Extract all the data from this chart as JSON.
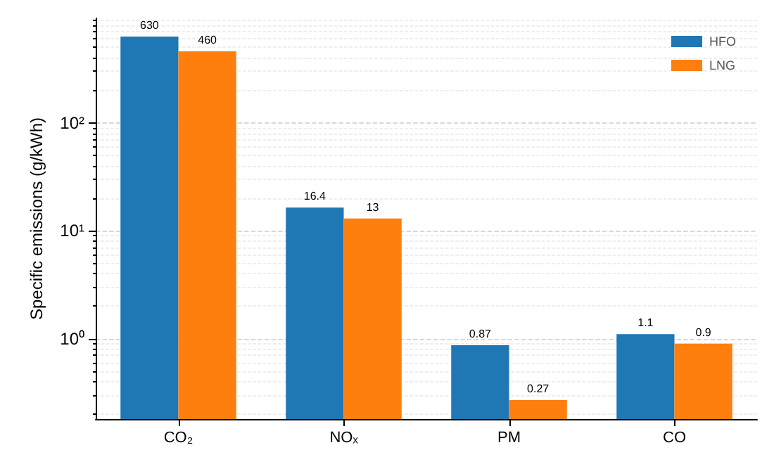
{
  "chart_data": {
    "type": "bar",
    "categories": [
      "CO₂",
      "NOₓ",
      "PM",
      "CO"
    ],
    "series": [
      {
        "name": "HFO",
        "color": "#1f77b4",
        "values": [
          630,
          16.4,
          0.87,
          1.1
        ]
      },
      {
        "name": "LNG",
        "color": "#ff7f0e",
        "values": [
          460,
          13,
          0.27,
          0.9
        ]
      }
    ],
    "ylabel": "Specific emissions (g/kWh)",
    "log": true,
    "ylim": [
      0.18,
      930
    ],
    "yticks": [
      {
        "value": 1,
        "label": "10⁰"
      },
      {
        "value": 10,
        "label": "10¹"
      },
      {
        "value": 100,
        "label": "10²"
      }
    ],
    "grid": "y",
    "legend": "top right",
    "data_labels": true
  }
}
